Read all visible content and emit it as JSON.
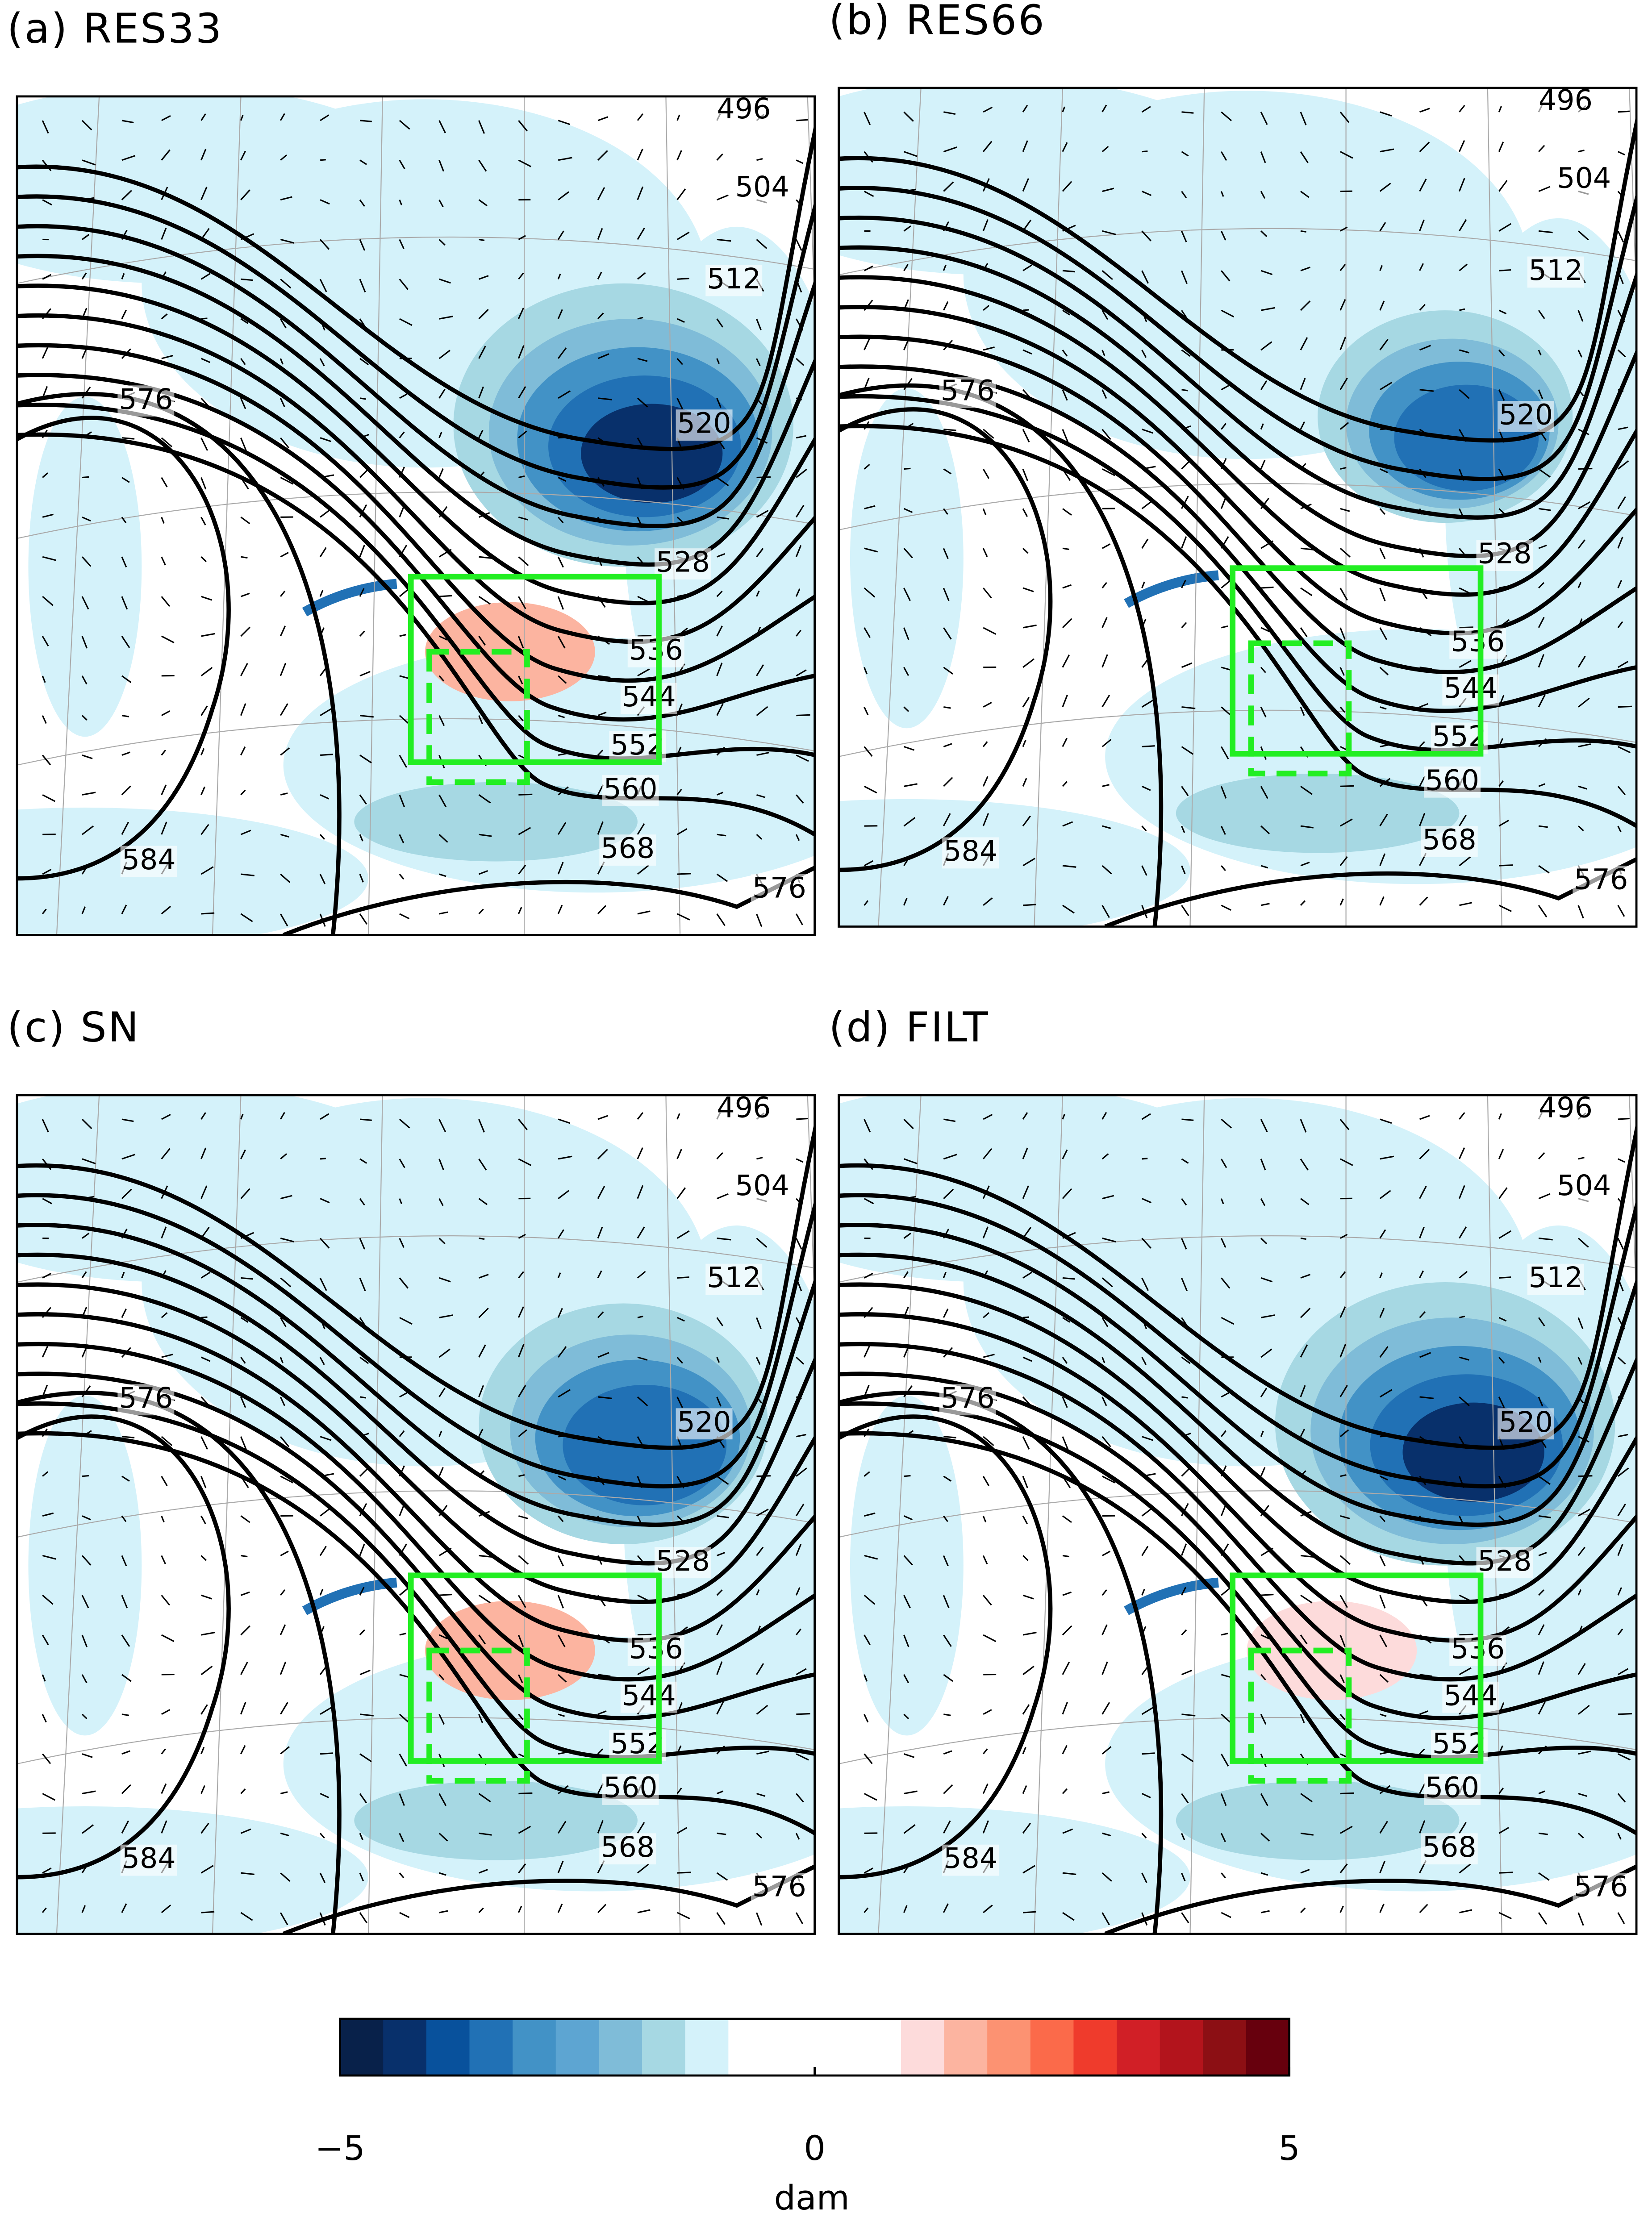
{
  "panels": [
    {
      "title": "(a) RES33",
      "contour_labels": [
        496,
        504,
        512,
        576,
        520,
        528,
        536,
        544,
        552,
        560,
        568,
        584,
        576
      ]
    },
    {
      "title": "(b) RES66",
      "contour_labels": [
        496,
        504,
        512,
        576,
        520,
        528,
        536,
        544,
        552,
        560,
        568,
        584,
        576
      ]
    },
    {
      "title": "(c) SN",
      "contour_labels": [
        496,
        504,
        512,
        576,
        520,
        528,
        536,
        544,
        552,
        560,
        568,
        584,
        576
      ]
    },
    {
      "title": "(d) FILT",
      "contour_labels": [
        496,
        504,
        512,
        576,
        520,
        528,
        536,
        544,
        552,
        560,
        568,
        584,
        576
      ]
    }
  ],
  "colorbar": {
    "colors": [
      "#08214a",
      "#08306b",
      "#08519c",
      "#2171b5",
      "#4292c6",
      "#5da5d2",
      "#7fbcd8",
      "#a6d8e3",
      "#d4f2fa",
      "#ffffff",
      "#ffffff",
      "#ffffff",
      "#ffffff",
      "#fddbdb",
      "#fcb4a0",
      "#fc9272",
      "#fb6a4a",
      "#ef3b2c",
      "#d11f26",
      "#b3141c",
      "#8c0f14",
      "#67000d"
    ],
    "lim": [
      -5,
      5
    ],
    "ticks": [
      {
        "value": -5,
        "label": "−5"
      },
      0,
      5
    ],
    "label": "dam"
  }
}
